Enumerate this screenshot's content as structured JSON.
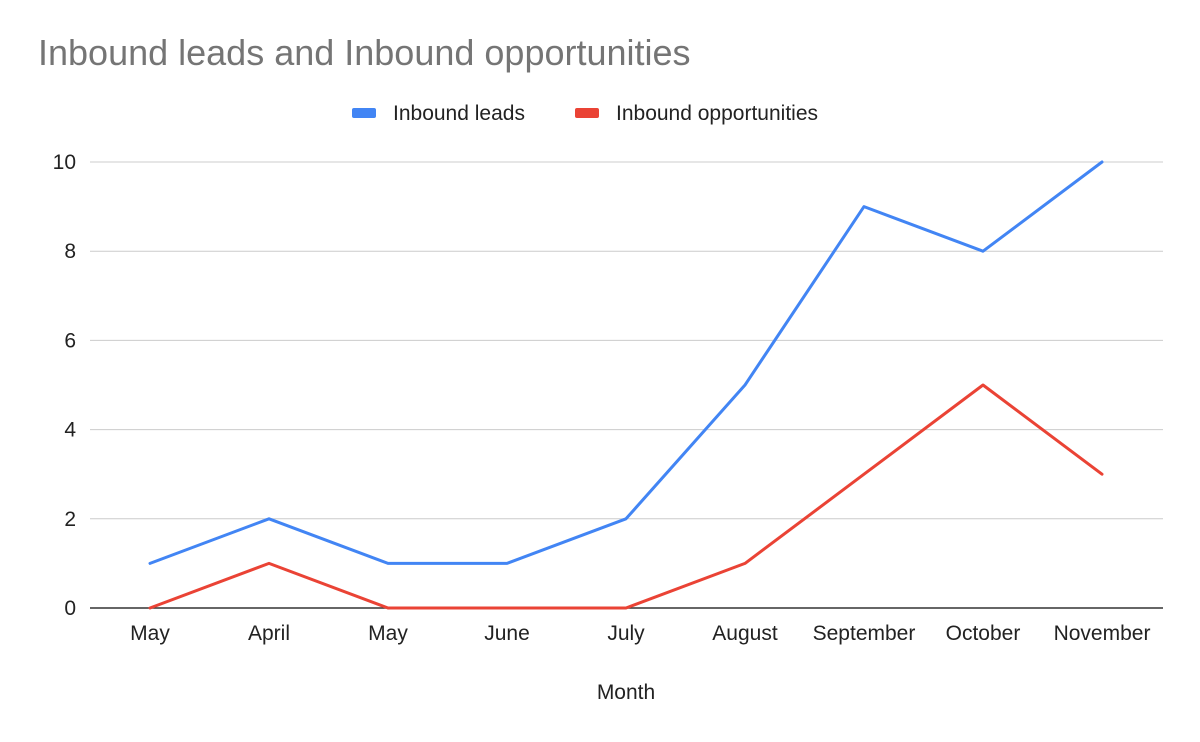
{
  "chart_data": {
    "type": "line",
    "title": "Inbound leads and Inbound opportunities",
    "xlabel": "Month",
    "ylabel": "",
    "categories": [
      "May",
      "April",
      "May",
      "June",
      "July",
      "August",
      "September",
      "October",
      "November"
    ],
    "series": [
      {
        "name": "Inbound leads",
        "color": "#4285f4",
        "values": [
          1,
          2,
          1,
          1,
          2,
          5,
          9,
          8,
          10
        ]
      },
      {
        "name": "Inbound opportunities",
        "color": "#ea4335",
        "values": [
          0,
          1,
          0,
          0,
          0,
          1,
          3,
          5,
          3
        ]
      }
    ],
    "ylim": [
      0,
      10
    ],
    "yticks": [
      0,
      2,
      4,
      6,
      8,
      10
    ],
    "grid": true,
    "legend_position": "top-center"
  }
}
